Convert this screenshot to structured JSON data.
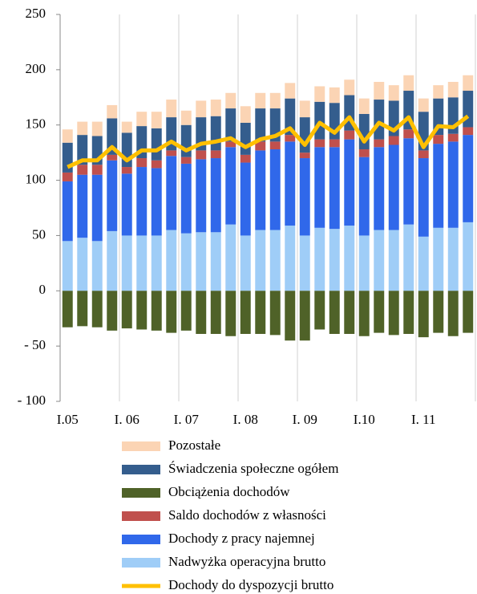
{
  "chart_data": {
    "type": "bar",
    "categories": [
      "I.05",
      null,
      null,
      null,
      "I. 06",
      null,
      null,
      null,
      "I. 07",
      null,
      null,
      null,
      "I. 08",
      null,
      null,
      null,
      "I. 09",
      null,
      null,
      null,
      "I.10",
      null,
      null,
      null,
      "I. 11",
      null,
      null,
      null
    ],
    "ylim": [
      -100,
      250
    ],
    "yticks": [
      {
        "value": -100,
        "label": "- 100"
      },
      {
        "value": -50,
        "label": "- 50"
      },
      0,
      50,
      100,
      150,
      200,
      250
    ],
    "grid": true,
    "series": [
      {
        "name": "Nadwyżka operacyjna brutto",
        "color": "#9fcdf7",
        "type": "bar",
        "values": [
          45,
          48,
          45,
          54,
          50,
          50,
          50,
          55,
          52,
          53,
          53,
          60,
          50,
          55,
          55,
          59,
          50,
          57,
          56,
          59,
          50,
          55,
          55,
          60,
          49,
          57,
          57,
          62
        ]
      },
      {
        "name": "Dochody z pracy najemnej",
        "color": "#3068ea",
        "type": "bar",
        "values": [
          54,
          57,
          60,
          64,
          56,
          62,
          61,
          67,
          63,
          66,
          67,
          70,
          66,
          72,
          73,
          76,
          70,
          73,
          74,
          78,
          71,
          75,
          77,
          78,
          71,
          76,
          78,
          79
        ]
      },
      {
        "name": "Saldo dochodów z własności",
        "color": "#c0504d",
        "type": "bar",
        "values": [
          8,
          9,
          9,
          5,
          6,
          8,
          7,
          5,
          6,
          8,
          7,
          5,
          7,
          8,
          7,
          6,
          5,
          7,
          7,
          8,
          7,
          7,
          8,
          8,
          7,
          8,
          7,
          7
        ]
      },
      {
        "name": "Świadczenia społeczne ogółem",
        "color": "#345d8d",
        "type": "bar",
        "values": [
          27,
          27,
          26,
          33,
          31,
          29,
          29,
          30,
          29,
          30,
          31,
          30,
          29,
          30,
          30,
          33,
          32,
          34,
          33,
          32,
          32,
          36,
          32,
          35,
          35,
          33,
          33,
          33
        ]
      },
      {
        "name": "Pozostałe",
        "color": "#fbd4b4",
        "type": "bar",
        "values": [
          12,
          12,
          13,
          12,
          10,
          13,
          15,
          16,
          13,
          15,
          15,
          14,
          15,
          14,
          14,
          14,
          15,
          14,
          14,
          14,
          14,
          16,
          14,
          14,
          12,
          12,
          14,
          14
        ]
      },
      {
        "name": "Obciążenia dochodów",
        "color": "#4f6228",
        "type": "bar",
        "values": [
          -33,
          -32,
          -33,
          -36,
          -34,
          -35,
          -36,
          -38,
          -36,
          -39,
          -39,
          -41,
          -39,
          -39,
          -40,
          -45,
          -45,
          -35,
          -39,
          -39,
          -41,
          -38,
          -40,
          -39,
          -42,
          -38,
          -41,
          -38
        ]
      },
      {
        "name": "Dochody do dyspozycji brutto",
        "color": "#ffc000",
        "type": "line",
        "values": [
          112,
          118,
          118,
          130,
          118,
          127,
          127,
          135,
          127,
          133,
          135,
          138,
          130,
          137,
          140,
          147,
          132,
          152,
          143,
          157,
          135,
          152,
          145,
          157,
          130,
          149,
          148,
          158
        ]
      }
    ],
    "legend_order": [
      4,
      3,
      5,
      2,
      1,
      0,
      6
    ]
  }
}
